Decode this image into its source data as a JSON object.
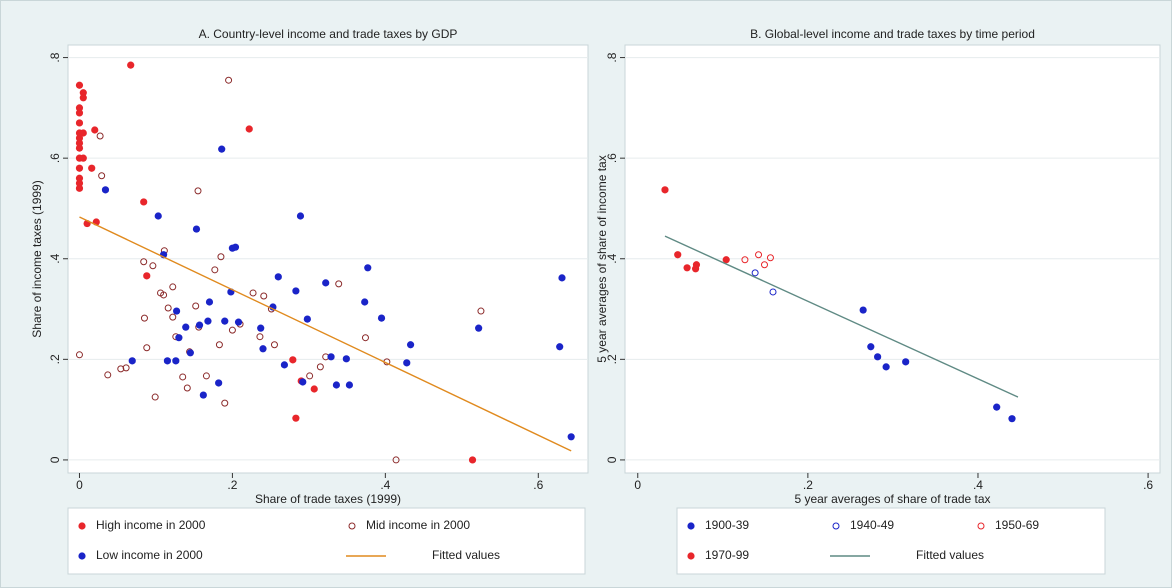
{
  "chart_data": [
    {
      "type": "scatter",
      "title": "A. Country-level income and trade taxes by GDP",
      "x_label": "Share of trade taxes (1999)",
      "y_label": "Share of income taxes (1999)",
      "xlim": [
        -0.015,
        0.665
      ],
      "ylim": [
        -0.026,
        0.825
      ],
      "xticks": [
        0,
        {
          "value": 0.2,
          "label": ".2"
        },
        {
          "value": 0.4,
          "label": ".4"
        },
        {
          "value": 0.6,
          "label": ".6"
        }
      ],
      "yticks": [
        0,
        {
          "value": 0.2,
          "label": ".2"
        },
        {
          "value": 0.4,
          "label": ".4"
        },
        {
          "value": 0.6,
          "label": ".6"
        },
        {
          "value": 0.8,
          "label": ".8"
        }
      ],
      "grid": true,
      "legend": "bottom",
      "series": [
        {
          "name": "High income in 2000",
          "color": "#e8262b",
          "marker": "filled",
          "x": [
            0,
            0,
            0,
            0,
            0,
            0,
            0,
            0,
            0,
            0,
            0,
            0,
            0,
            0.005,
            0.005,
            0.005,
            0.005,
            0.02,
            0.016,
            0.022,
            0.01,
            0.067,
            0.084,
            0.088,
            0.222,
            0.279,
            0.283,
            0.307,
            0.29,
            0.514
          ],
          "values": [
            0.745,
            0.7,
            0.69,
            0.67,
            0.65,
            0.64,
            0.63,
            0.62,
            0.6,
            0.58,
            0.56,
            0.55,
            0.54,
            0.73,
            0.72,
            0.6,
            0.65,
            0.656,
            0.58,
            0.473,
            0.47,
            0.785,
            0.513,
            0.366,
            0.658,
            0.199,
            0.083,
            0.141,
            0.157,
            0
          ]
        },
        {
          "name": "Mid income in 2000",
          "color": "#8b2a2a",
          "marker": "hollow",
          "x": [
            0,
            0.027,
            0.029,
            0.037,
            0.054,
            0.061,
            0.084,
            0.085,
            0.088,
            0.096,
            0.099,
            0.106,
            0.11,
            0.111,
            0.116,
            0.122,
            0.122,
            0.126,
            0.135,
            0.141,
            0.144,
            0.155,
            0.152,
            0.156,
            0.166,
            0.177,
            0.183,
            0.185,
            0.19,
            0.195,
            0.2,
            0.21,
            0.227,
            0.236,
            0.241,
            0.251,
            0.255,
            0.301,
            0.315,
            0.322,
            0.339,
            0.374,
            0.402,
            0.414,
            0.525
          ],
          "values": [
            0.209,
            0.644,
            0.565,
            0.169,
            0.181,
            0.183,
            0.394,
            0.282,
            0.223,
            0.386,
            0.125,
            0.332,
            0.328,
            0.416,
            0.302,
            0.284,
            0.344,
            0.245,
            0.165,
            0.143,
            0.215,
            0.535,
            0.306,
            0.264,
            0.167,
            0.378,
            0.229,
            0.404,
            0.113,
            0.755,
            0.258,
            0.27,
            0.332,
            0.245,
            0.326,
            0.3,
            0.229,
            0.167,
            0.185,
            0.205,
            0.35,
            0.243,
            0.195,
            0,
            0.296
          ]
        },
        {
          "name": "Low income in 2000",
          "color": "#1a24c8",
          "marker": "filled",
          "x": [
            0.034,
            0.069,
            0.103,
            0.11,
            0.115,
            0.126,
            0.127,
            0.13,
            0.139,
            0.145,
            0.153,
            0.157,
            0.162,
            0.168,
            0.17,
            0.182,
            0.186,
            0.19,
            0.198,
            0.2,
            0.204,
            0.208,
            0.237,
            0.24,
            0.253,
            0.26,
            0.268,
            0.283,
            0.289,
            0.292,
            0.298,
            0.322,
            0.329,
            0.336,
            0.349,
            0.353,
            0.373,
            0.377,
            0.395,
            0.428,
            0.433,
            0.522,
            0.628,
            0.631,
            0.643
          ],
          "values": [
            0.537,
            0.197,
            0.485,
            0.408,
            0.197,
            0.197,
            0.296,
            0.243,
            0.264,
            0.213,
            0.459,
            0.268,
            0.129,
            0.276,
            0.314,
            0.153,
            0.618,
            0.276,
            0.334,
            0.421,
            0.423,
            0.274,
            0.262,
            0.221,
            0.304,
            0.364,
            0.189,
            0.336,
            0.485,
            0.155,
            0.28,
            0.352,
            0.205,
            0.149,
            0.201,
            0.149,
            0.314,
            0.382,
            0.282,
            0.193,
            0.229,
            0.262,
            0.225,
            0.362,
            0.046
          ]
        },
        {
          "name": "Fitted values",
          "color": "#e08a1e",
          "marker": "line",
          "x": [
            0,
            0.643
          ],
          "values": [
            0.483,
            0.018
          ]
        }
      ]
    },
    {
      "type": "scatter",
      "title": "B. Global-level income and trade taxes by time period",
      "x_label": "5 year averages of share of trade tax",
      "y_label": "5 year averages of share of income tax",
      "xlim": [
        -0.015,
        0.614
      ],
      "ylim": [
        -0.026,
        0.825
      ],
      "xticks": [
        0,
        {
          "value": 0.2,
          "label": ".2"
        },
        {
          "value": 0.4,
          "label": ".4"
        },
        {
          "value": 0.6,
          "label": ".6"
        }
      ],
      "yticks": [
        0,
        {
          "value": 0.2,
          "label": ".2"
        },
        {
          "value": 0.4,
          "label": ".4"
        },
        {
          "value": 0.6,
          "label": ".6"
        },
        {
          "value": 0.8,
          "label": ".8"
        }
      ],
      "grid": true,
      "legend": "bottom",
      "series": [
        {
          "name": "1900-39",
          "color": "#1a24c8",
          "marker": "filled",
          "x": [
            0.265,
            0.274,
            0.282,
            0.292,
            0.315,
            0.422,
            0.44
          ],
          "values": [
            0.298,
            0.225,
            0.205,
            0.185,
            0.195,
            0.105,
            0.082
          ]
        },
        {
          "name": "1940-49",
          "color": "#1a24c8",
          "marker": "hollow",
          "x": [
            0.138,
            0.159
          ],
          "values": [
            0.372,
            0.334
          ]
        },
        {
          "name": "1950-69",
          "color": "#e8262b",
          "marker": "hollow",
          "x": [
            0.126,
            0.142,
            0.149,
            0.156
          ],
          "values": [
            0.398,
            0.408,
            0.388,
            0.402
          ]
        },
        {
          "name": "1970-99",
          "color": "#e8262b",
          "marker": "filled",
          "x": [
            0.032,
            0.047,
            0.058,
            0.068,
            0.069,
            0.104
          ],
          "values": [
            0.537,
            0.408,
            0.382,
            0.38,
            0.388,
            0.398
          ]
        },
        {
          "name": "Fitted values",
          "color": "#5f8a84",
          "marker": "line",
          "x": [
            0.032,
            0.447
          ],
          "values": [
            0.445,
            0.125
          ]
        }
      ]
    }
  ]
}
